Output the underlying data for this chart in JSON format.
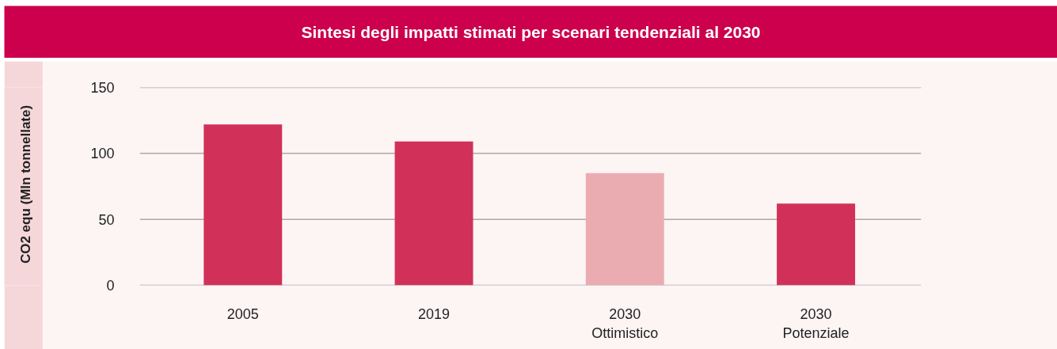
{
  "chart_data": {
    "type": "bar",
    "title": "Sintesi degli impatti stimati per scenari tendenziali al 2030",
    "ylabel": "CO2 equ (Mln tonnellate)",
    "categories": [
      "2005",
      "2019",
      "2030\nOttimistico",
      "2030\nPotenziale"
    ],
    "values": [
      122,
      109,
      85,
      62
    ],
    "colors": [
      "#d13159",
      "#d13159",
      "#ebacb1",
      "#d13159"
    ],
    "ylim": [
      0,
      150
    ],
    "yticks": [
      0,
      50,
      100,
      150
    ],
    "grid": "y"
  }
}
